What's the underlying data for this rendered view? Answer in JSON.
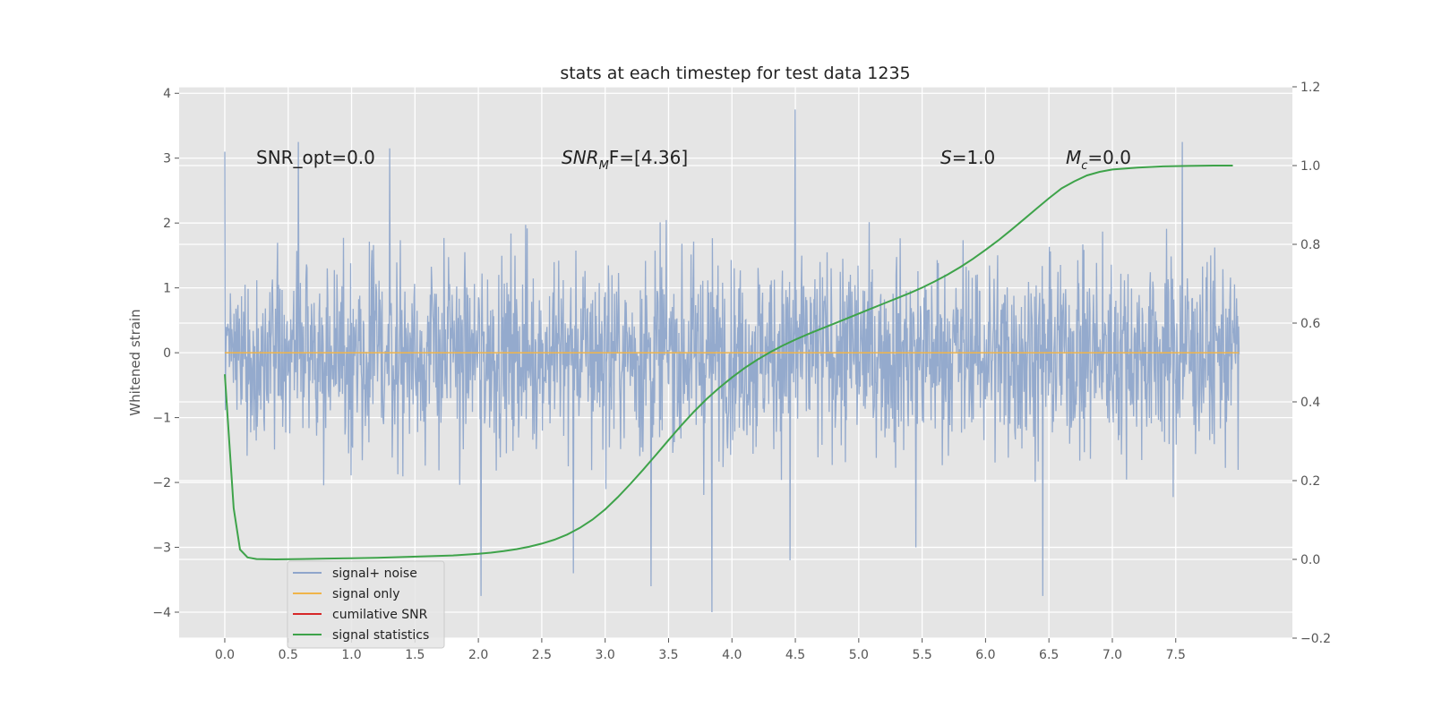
{
  "chart_data": {
    "type": "line",
    "title": "stats at each timestep for test data 1235",
    "xlabel": "",
    "ylabel": "Whitened strain",
    "ylabel_right": "",
    "xlim": [
      -0.36,
      8.42
    ],
    "ylim": [
      -4.4,
      4.1
    ],
    "ylim_right": [
      -0.2,
      1.2
    ],
    "xticks": [
      "0.0",
      "0.5",
      "1.0",
      "1.5",
      "2.0",
      "2.5",
      "3.0",
      "3.5",
      "4.0",
      "4.5",
      "5.0",
      "5.5",
      "6.0",
      "6.5",
      "7.0",
      "7.5"
    ],
    "yticks_left": [
      "4",
      "3",
      "2",
      "1",
      "0",
      "−1",
      "−2",
      "−3",
      "−4"
    ],
    "yticks_right": [
      "1.2",
      "1.0",
      "0.8",
      "0.6",
      "0.4",
      "0.2",
      "0.0",
      "−0.2"
    ],
    "grid": true,
    "background": "#e5e5e5",
    "annotations": [
      {
        "key": "snr_opt",
        "text": "SNR_opt=0.0"
      },
      {
        "key": "snr_mf",
        "base": "SNR",
        "sub": "M",
        "rest": "F=[4.36]"
      },
      {
        "key": "s",
        "base": "S",
        "rest": "=1.0"
      },
      {
        "key": "mc",
        "base": "M",
        "sub": "c",
        "rest": "=0.0"
      }
    ],
    "legend": {
      "placement": "lower-left",
      "entries": [
        {
          "label": "signal+ noise",
          "color": "#8fa6cb"
        },
        {
          "label": "signal only",
          "color": "#f0b54a"
        },
        {
          "label": "cumilative SNR",
          "color": "#d62728"
        },
        {
          "label": "signal statistics",
          "color": "#3ea34a"
        }
      ]
    },
    "series": [
      {
        "name": "signal+ noise",
        "axis": "left",
        "color": "#8fa6cb",
        "x_range": [
          0.0,
          8.0
        ],
        "num_points": 2000,
        "envelope_typical": [
          -2.0,
          2.0
        ],
        "extremes": [
          {
            "x": 0.0,
            "y": 3.1
          },
          {
            "x": 0.58,
            "y": 3.25
          },
          {
            "x": 1.3,
            "y": 3.15
          },
          {
            "x": 2.02,
            "y": -3.75
          },
          {
            "x": 3.36,
            "y": -3.6
          },
          {
            "x": 3.84,
            "y": -4.0
          },
          {
            "x": 4.5,
            "y": 3.75
          },
          {
            "x": 4.46,
            "y": -3.2
          },
          {
            "x": 6.45,
            "y": -3.75
          },
          {
            "x": 7.55,
            "y": 3.25
          },
          {
            "x": 5.45,
            "y": -3.0
          },
          {
            "x": 2.75,
            "y": -3.4
          }
        ]
      },
      {
        "name": "signal only",
        "axis": "left",
        "color": "#f0b54a",
        "x": [
          0.0,
          8.0
        ],
        "y": [
          0.0,
          0.0
        ]
      },
      {
        "name": "signal statistics",
        "axis": "right",
        "color": "#3ea34a",
        "x": [
          0.0,
          0.07,
          0.12,
          0.18,
          0.25,
          0.4,
          0.6,
          0.8,
          1.0,
          1.2,
          1.4,
          1.6,
          1.8,
          2.0,
          2.1,
          2.2,
          2.3,
          2.4,
          2.5,
          2.6,
          2.7,
          2.8,
          2.9,
          3.0,
          3.1,
          3.2,
          3.3,
          3.4,
          3.5,
          3.6,
          3.7,
          3.8,
          3.9,
          4.0,
          4.1,
          4.2,
          4.3,
          4.4,
          4.5,
          4.6,
          4.7,
          4.8,
          4.9,
          5.0,
          5.1,
          5.2,
          5.3,
          5.4,
          5.5,
          5.6,
          5.7,
          5.8,
          5.9,
          6.0,
          6.1,
          6.2,
          6.3,
          6.4,
          6.5,
          6.6,
          6.7,
          6.8,
          6.9,
          7.0,
          7.2,
          7.4,
          7.6,
          7.8,
          7.95
        ],
        "y": [
          0.47,
          0.13,
          0.025,
          0.005,
          0.001,
          0.0,
          0.001,
          0.002,
          0.003,
          0.004,
          0.006,
          0.008,
          0.01,
          0.014,
          0.017,
          0.021,
          0.026,
          0.032,
          0.04,
          0.05,
          0.063,
          0.08,
          0.101,
          0.127,
          0.158,
          0.192,
          0.228,
          0.265,
          0.303,
          0.34,
          0.375,
          0.407,
          0.436,
          0.462,
          0.486,
          0.507,
          0.526,
          0.543,
          0.558,
          0.572,
          0.585,
          0.598,
          0.611,
          0.624,
          0.637,
          0.65,
          0.663,
          0.676,
          0.69,
          0.706,
          0.723,
          0.742,
          0.763,
          0.786,
          0.81,
          0.836,
          0.863,
          0.89,
          0.917,
          0.942,
          0.96,
          0.975,
          0.984,
          0.99,
          0.995,
          0.998,
          0.999,
          1.0,
          1.0
        ]
      }
    ]
  }
}
